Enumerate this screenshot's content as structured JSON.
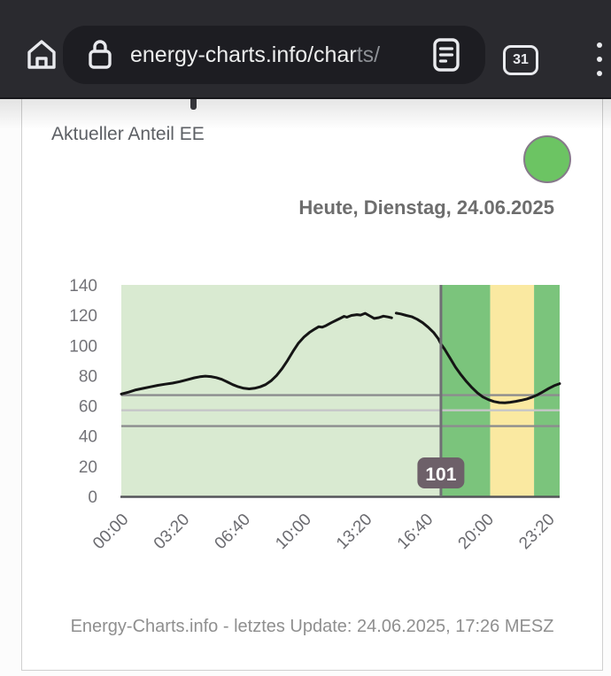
{
  "browser": {
    "url_main": "energy-charts.info/char",
    "url_faded": "ts/",
    "tab_count": "31"
  },
  "page": {
    "date_label": "Heute, Dienstag, 24.06.2025",
    "footer": "Energy-Charts.info - letztes Update: 24.06.2025, 17:26 MESZ",
    "status_color": "#6cc463"
  },
  "chart_data": {
    "type": "line",
    "title": "Aktueller Anteil EE",
    "unit": "%",
    "ylim": [
      0,
      140
    ],
    "yticks": [
      0,
      20,
      40,
      60,
      80,
      100,
      120,
      140
    ],
    "xticks": [
      {
        "h": 0,
        "label": "00:00"
      },
      {
        "h": 3.333,
        "label": "03:20"
      },
      {
        "h": 6.667,
        "label": "06:40"
      },
      {
        "h": 10,
        "label": "10:00"
      },
      {
        "h": 13.333,
        "label": "13:20"
      },
      {
        "h": 16.667,
        "label": "16:40"
      },
      {
        "h": 20,
        "label": "20:00"
      },
      {
        "h": 23.333,
        "label": "23:20"
      }
    ],
    "bands": [
      {
        "from": 0,
        "to": 17.5,
        "color": "#d9ead1"
      },
      {
        "from": 17.5,
        "to": 20.2,
        "color": "#7bc47c"
      },
      {
        "from": 20.2,
        "to": 22.6,
        "color": "#fae9a1"
      },
      {
        "from": 22.6,
        "to": 24,
        "color": "#7bc47c"
      }
    ],
    "reference_lines": [
      {
        "value": 67,
        "color": "#8c8c8e"
      },
      {
        "value": 57,
        "color": "#c6c6c8"
      },
      {
        "value": 46.5,
        "color": "#8c8c8e"
      }
    ],
    "series": [
      {
        "name": "Anteil EE (%)",
        "color": "#151515",
        "segments": [
          [
            [
              0,
              67.8
            ],
            [
              0.4,
              69
            ],
            [
              0.8,
              70.5
            ],
            [
              1.2,
              71.5
            ],
            [
              1.6,
              72.5
            ],
            [
              2,
              73.5
            ],
            [
              2.4,
              74.3
            ],
            [
              2.8,
              75
            ],
            [
              3.2,
              76
            ],
            [
              3.6,
              77.2
            ],
            [
              4,
              78.5
            ],
            [
              4.3,
              79.2
            ],
            [
              4.6,
              79.6
            ],
            [
              4.9,
              79.3
            ],
            [
              5.2,
              78.6
            ],
            [
              5.5,
              77.5
            ],
            [
              5.8,
              75.8
            ],
            [
              6.1,
              74
            ],
            [
              6.4,
              72.6
            ],
            [
              6.7,
              71.6
            ],
            [
              7,
              71.2
            ],
            [
              7.3,
              71.6
            ],
            [
              7.6,
              72.5
            ],
            [
              7.9,
              74
            ],
            [
              8.2,
              76.5
            ],
            [
              8.5,
              80
            ],
            [
              8.8,
              84.5
            ],
            [
              9.1,
              90
            ],
            [
              9.4,
              96
            ],
            [
              9.7,
              101.5
            ],
            [
              10,
              105.5
            ],
            [
              10.3,
              108.5
            ],
            [
              10.6,
              110.8
            ],
            [
              10.8,
              112.3
            ],
            [
              11,
              112
            ],
            [
              11.2,
              113
            ],
            [
              11.5,
              115
            ],
            [
              11.8,
              116.8
            ],
            [
              12,
              118
            ],
            [
              12.2,
              119.2
            ],
            [
              12.35,
              118.6
            ],
            [
              12.6,
              119.8
            ],
            [
              12.9,
              120.3
            ],
            [
              13.1,
              120
            ],
            [
              13.35,
              121.2
            ],
            [
              13.6,
              119.5
            ],
            [
              13.85,
              117.8
            ],
            [
              14.1,
              118.3
            ],
            [
              14.35,
              119.3
            ],
            [
              14.6,
              118.8
            ],
            [
              14.8,
              118.2
            ]
          ],
          [
            [
              15.05,
              121.3
            ],
            [
              15.3,
              120.8
            ],
            [
              15.6,
              119.8
            ],
            [
              15.9,
              119
            ],
            [
              16.2,
              117.3
            ],
            [
              16.5,
              115
            ],
            [
              16.8,
              112
            ],
            [
              17.1,
              108.5
            ],
            [
              17.35,
              104.5
            ],
            [
              17.5,
              101
            ],
            [
              17.7,
              97.5
            ],
            [
              18,
              91.5
            ],
            [
              18.3,
              85.5
            ],
            [
              18.6,
              80.5
            ],
            [
              18.9,
              76
            ],
            [
              19.2,
              72
            ],
            [
              19.5,
              68.5
            ],
            [
              19.8,
              65.8
            ],
            [
              20.1,
              64
            ],
            [
              20.4,
              62.8
            ],
            [
              20.7,
              62.1
            ],
            [
              21,
              62
            ],
            [
              21.3,
              62.3
            ],
            [
              21.6,
              62.9
            ],
            [
              21.9,
              63.6
            ],
            [
              22.2,
              64.5
            ],
            [
              22.5,
              65.7
            ],
            [
              22.8,
              67.3
            ],
            [
              23.1,
              69.3
            ],
            [
              23.4,
              71.4
            ],
            [
              23.7,
              73.3
            ],
            [
              24,
              74.6
            ]
          ]
        ]
      }
    ],
    "crosshair": {
      "hour": 17.5,
      "label": "101",
      "color": "#6f6f74",
      "tooltip_bg": "#6d6069"
    },
    "legend": "none",
    "grid": "off"
  }
}
